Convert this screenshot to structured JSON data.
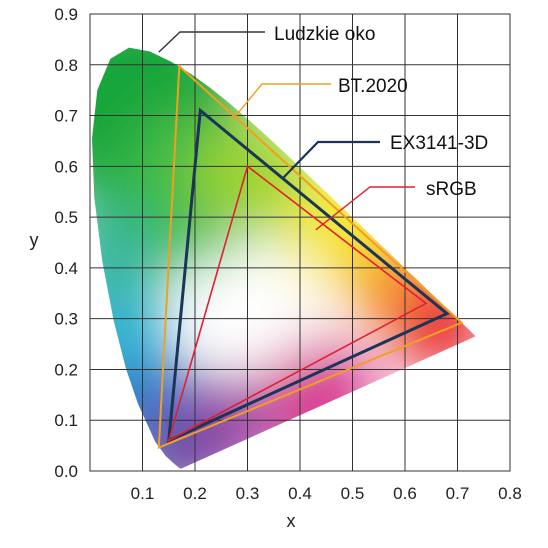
{
  "chart_data": {
    "type": "scatter",
    "title": "",
    "xlabel": "x",
    "ylabel": "y",
    "xlim": [
      0,
      0.8
    ],
    "ylim": [
      0,
      0.9
    ],
    "x_ticks": [
      "0.1",
      "0.2",
      "0.3",
      "0.4",
      "0.5",
      "0.6",
      "0.7",
      "0.8"
    ],
    "y_ticks": [
      "0.0",
      "0.1",
      "0.2",
      "0.3",
      "0.4",
      "0.5",
      "0.6",
      "0.7",
      "0.8",
      "0.9"
    ],
    "grid": true,
    "spectral_locus": {
      "name": "Ludzkie oko",
      "points": [
        [
          0.1741,
          0.005
        ],
        [
          0.1738,
          0.0049
        ],
        [
          0.1733,
          0.0048
        ],
        [
          0.1726,
          0.0048
        ],
        [
          0.1714,
          0.0051
        ],
        [
          0.1689,
          0.0069
        ],
        [
          0.1644,
          0.0109
        ],
        [
          0.1566,
          0.0177
        ],
        [
          0.144,
          0.0297
        ],
        [
          0.1241,
          0.0578
        ],
        [
          0.0913,
          0.1327
        ],
        [
          0.0687,
          0.2007
        ],
        [
          0.0454,
          0.295
        ],
        [
          0.0235,
          0.4127
        ],
        [
          0.0082,
          0.5384
        ],
        [
          0.0039,
          0.6548
        ],
        [
          0.0139,
          0.7502
        ],
        [
          0.0389,
          0.812
        ],
        [
          0.0743,
          0.8338
        ],
        [
          0.1142,
          0.8262
        ],
        [
          0.1547,
          0.8059
        ],
        [
          0.1929,
          0.7816
        ],
        [
          0.2296,
          0.7543
        ],
        [
          0.2658,
          0.7243
        ],
        [
          0.3016,
          0.6923
        ],
        [
          0.3373,
          0.6589
        ],
        [
          0.3731,
          0.6245
        ],
        [
          0.4087,
          0.5896
        ],
        [
          0.4441,
          0.5547
        ],
        [
          0.4788,
          0.5202
        ],
        [
          0.5125,
          0.4866
        ],
        [
          0.5448,
          0.4544
        ],
        [
          0.5752,
          0.4242
        ],
        [
          0.6029,
          0.3965
        ],
        [
          0.627,
          0.3725
        ],
        [
          0.6482,
          0.3514
        ],
        [
          0.6658,
          0.334
        ],
        [
          0.6801,
          0.3197
        ],
        [
          0.6915,
          0.3083
        ],
        [
          0.7006,
          0.2993
        ],
        [
          0.7079,
          0.292
        ],
        [
          0.714,
          0.2859
        ],
        [
          0.719,
          0.2809
        ],
        [
          0.723,
          0.277
        ],
        [
          0.726,
          0.274
        ],
        [
          0.7347,
          0.2653
        ]
      ],
      "color": "#333333"
    },
    "series": [
      {
        "name": "BT.2020",
        "color": "#f0a020",
        "points": [
          [
            0.708,
            0.292
          ],
          [
            0.17,
            0.797
          ],
          [
            0.131,
            0.046
          ]
        ]
      },
      {
        "name": "EX3141-3D",
        "color": "#1a3557",
        "points": [
          [
            0.68,
            0.31
          ],
          [
            0.21,
            0.71
          ],
          [
            0.15,
            0.06
          ]
        ]
      },
      {
        "name": "sRGB",
        "color": "#e02030",
        "points": [
          [
            0.64,
            0.33
          ],
          [
            0.3,
            0.6
          ],
          [
            0.15,
            0.06
          ]
        ]
      }
    ],
    "annotations": [
      {
        "text": "Ludzkie oko",
        "target": [
          0.131,
          0.825
        ],
        "color": "#333333"
      },
      {
        "text": "BT.2020",
        "target": [
          0.27,
          0.69
        ],
        "color": "#f0a020"
      },
      {
        "text": "EX3141-3D",
        "target": [
          0.366,
          0.575
        ],
        "color": "#1a3557"
      },
      {
        "text": "sRGB",
        "target": [
          0.43,
          0.475
        ],
        "color": "#e02030"
      }
    ],
    "legend": "annotations"
  }
}
